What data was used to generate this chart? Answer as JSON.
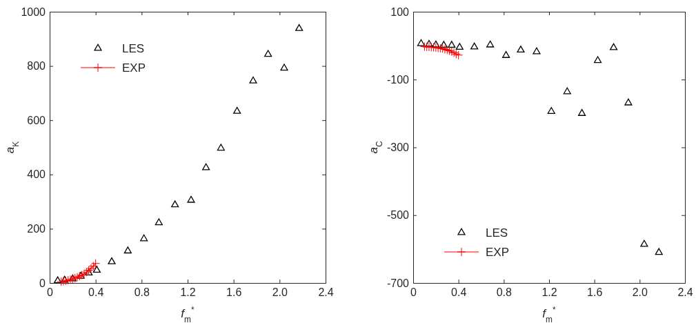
{
  "chart_data": [
    {
      "type": "scatter",
      "xlabel": "f$_{m}$$^{*}$",
      "ylabel": "a$_{K}$",
      "xlim": [
        0,
        2.4
      ],
      "ylim": [
        0,
        1000
      ],
      "xticks": [
        0,
        0.4,
        0.8,
        1.2,
        1.6,
        {
          "value": 2,
          "label": "2.0"
        },
        2.4
      ],
      "yticks": [
        0,
        200,
        400,
        600,
        800,
        1000
      ],
      "legend": "top left",
      "grid": false,
      "series": [
        {
          "name": "LES",
          "color": "#000000",
          "marker": "triangle",
          "x": [
            0.07,
            0.13,
            0.2,
            0.27,
            0.34,
            0.41,
            0.54,
            0.68,
            0.82,
            0.95,
            1.09,
            1.23,
            1.36,
            1.49,
            1.63,
            1.77,
            1.9,
            2.04,
            2.17
          ],
          "values": [
            8,
            10,
            15,
            25,
            37,
            47,
            78,
            118,
            163,
            222,
            288,
            305,
            425,
            497,
            633,
            745,
            843,
            792,
            938
          ]
        },
        {
          "name": "EXP",
          "color": "#ff0000",
          "type": "line",
          "marker": "cross",
          "line_style": "solid",
          "x": [
            0.1,
            0.12,
            0.14,
            0.16,
            0.18,
            0.2,
            0.22,
            0.24,
            0.26,
            0.28,
            0.3,
            0.32,
            0.34,
            0.36,
            0.38,
            0.4
          ],
          "values": [
            5,
            6,
            8,
            10,
            12,
            15,
            18,
            21,
            25,
            29,
            34,
            40,
            47,
            54,
            62,
            72
          ]
        }
      ]
    },
    {
      "type": "scatter",
      "xlabel": "f$_{m}$$^{*}$",
      "ylabel": "a$_{C}$",
      "xlim": [
        0,
        2.4
      ],
      "ylim": [
        -700,
        100
      ],
      "xticks": [
        0,
        0.4,
        0.8,
        1.2,
        1.6,
        {
          "value": 2,
          "label": "2.0"
        },
        2.4
      ],
      "yticks": [
        -700,
        -500,
        -300,
        -100,
        100
      ],
      "legend": "bottom left",
      "grid": false,
      "series": [
        {
          "name": "LES",
          "color": "#000000",
          "marker": "triangle",
          "x": [
            0.07,
            0.14,
            0.2,
            0.27,
            0.34,
            0.41,
            0.54,
            0.68,
            0.82,
            0.95,
            1.09,
            1.22,
            1.36,
            1.49,
            1.63,
            1.77,
            1.9,
            2.04,
            2.17
          ],
          "values": [
            6,
            4,
            2,
            1,
            1,
            -5,
            -4,
            2,
            -29,
            -13,
            -18,
            -194,
            -136,
            -200,
            -44,
            -6,
            -169,
            -586,
            -610
          ]
        },
        {
          "name": "EXP",
          "color": "#ff0000",
          "type": "line",
          "marker": "cross",
          "line_style": "solid",
          "x": [
            0.1,
            0.12,
            0.14,
            0.16,
            0.18,
            0.2,
            0.22,
            0.24,
            0.26,
            0.28,
            0.3,
            0.32,
            0.34,
            0.36,
            0.38,
            0.4
          ],
          "values": [
            -3,
            -4,
            -4,
            -5,
            -5,
            -6,
            -7,
            -8,
            -9,
            -11,
            -13,
            -15,
            -18,
            -21,
            -25,
            -28
          ]
        }
      ]
    }
  ]
}
